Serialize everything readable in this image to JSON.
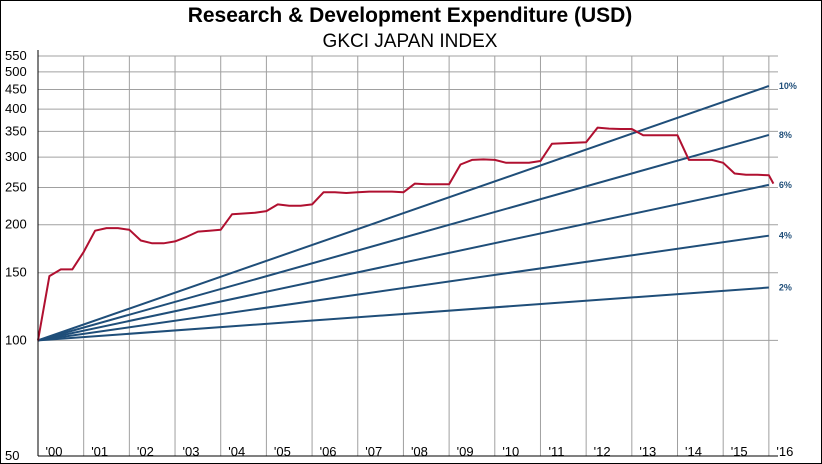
{
  "colors": {
    "index": "#b01030",
    "rates": "#1f4e79",
    "grid": "#a0a0a0",
    "axis": "#000000"
  },
  "chart_data": {
    "type": "line",
    "title": "Research & Development Expenditure (USD)",
    "subtitle": "GKCI JAPAN INDEX",
    "xlabel": "",
    "ylabel": "",
    "y_scale": "log",
    "ylim": [
      50,
      550
    ],
    "xlim": [
      2000,
      2016.2
    ],
    "yticks": [
      50,
      100,
      150,
      200,
      250,
      300,
      350,
      400,
      450,
      500,
      550
    ],
    "xticks": [
      {
        "label": "'00",
        "x": 2000
      },
      {
        "label": "'01",
        "x": 2001
      },
      {
        "label": "'02",
        "x": 2002
      },
      {
        "label": "'03",
        "x": 2003
      },
      {
        "label": "'04",
        "x": 2004
      },
      {
        "label": "'05",
        "x": 2005
      },
      {
        "label": "'06",
        "x": 2006
      },
      {
        "label": "'07",
        "x": 2007
      },
      {
        "label": "'08",
        "x": 2008
      },
      {
        "label": "'09",
        "x": 2009
      },
      {
        "label": "'10",
        "x": 2010
      },
      {
        "label": "'11",
        "x": 2011
      },
      {
        "label": "'12",
        "x": 2012
      },
      {
        "label": "'13",
        "x": 2013
      },
      {
        "label": "'14",
        "x": 2014
      },
      {
        "label": "'15",
        "x": 2015
      },
      {
        "label": "'16",
        "x": 2016
      }
    ],
    "grid": true,
    "series": [
      {
        "role": "index",
        "x": [
          2000.0,
          2000.25,
          2000.5,
          2000.75,
          2001.0,
          2001.25,
          2001.5,
          2001.75,
          2002.0,
          2002.25,
          2002.5,
          2002.75,
          2003.0,
          2003.25,
          2003.5,
          2003.75,
          2004.0,
          2004.25,
          2004.5,
          2004.75,
          2005.0,
          2005.25,
          2005.5,
          2005.75,
          2006.0,
          2006.25,
          2006.5,
          2006.75,
          2007.0,
          2007.25,
          2007.5,
          2007.75,
          2008.0,
          2008.25,
          2008.5,
          2008.75,
          2009.0,
          2009.25,
          2009.5,
          2009.75,
          2010.0,
          2010.25,
          2010.5,
          2010.75,
          2011.0,
          2011.25,
          2011.5,
          2011.75,
          2012.0,
          2012.25,
          2012.5,
          2012.75,
          2013.0,
          2013.25,
          2013.5,
          2013.75,
          2014.0,
          2014.25,
          2014.5,
          2014.75,
          2015.0,
          2015.25,
          2015.5,
          2015.75,
          2016.0,
          2016.1
        ],
        "y": [
          100,
          147,
          153,
          153,
          170,
          193,
          196,
          196,
          194,
          182,
          179,
          179,
          181,
          186,
          192,
          193,
          194,
          213,
          214,
          215,
          217,
          226,
          224,
          224,
          226,
          243,
          243,
          242,
          243,
          244,
          244,
          244,
          243,
          256,
          255,
          255,
          255,
          287,
          295,
          296,
          295,
          290,
          290,
          290,
          293,
          325,
          326,
          327,
          328,
          358,
          356,
          355,
          355,
          342,
          342,
          342,
          342,
          295,
          295,
          295,
          290,
          272,
          270,
          270,
          269,
          256
        ]
      },
      {
        "role": "rate",
        "name": "2%",
        "rate": 0.02
      },
      {
        "role": "rate",
        "name": "4%",
        "rate": 0.04
      },
      {
        "role": "rate",
        "name": "6%",
        "rate": 0.06
      },
      {
        "role": "rate",
        "name": "8%",
        "rate": 0.08
      },
      {
        "role": "rate",
        "name": "10%",
        "rate": 0.1
      }
    ]
  }
}
